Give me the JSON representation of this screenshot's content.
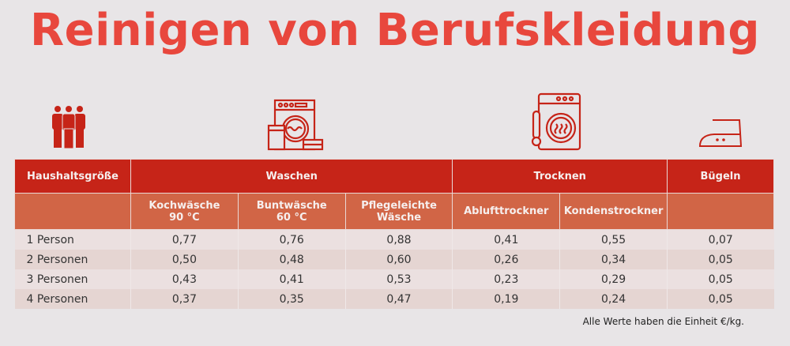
{
  "title": "Reinigen von Berufskleidung",
  "icons": [
    "people-icon",
    "washing-machine-icon",
    "dryer-icon",
    "iron-icon"
  ],
  "colors": {
    "accent": "#e8473d",
    "header": "#c62418",
    "subheader": "#d16546"
  },
  "table": {
    "groups": [
      "Haushaltsgröße",
      "Waschen",
      "Trocknen",
      "Bügeln"
    ],
    "subheaders": [
      "Kochwäsche",
      "90 °C",
      "Buntwäsche",
      "60 °C",
      "Pflegeleichte",
      "Wäsche",
      "Ablufttrockner",
      "Kondenstrockner"
    ],
    "rows": [
      [
        "1 Person",
        "0,77",
        "0,76",
        "0,88",
        "0,41",
        "0,55",
        "0,07"
      ],
      [
        "2 Personen",
        "0,50",
        "0,48",
        "0,60",
        "0,26",
        "0,34",
        "0,05"
      ],
      [
        "3 Personen",
        "0,43",
        "0,41",
        "0,53",
        "0,23",
        "0,29",
        "0,05"
      ],
      [
        "4 Personen",
        "0,37",
        "0,35",
        "0,47",
        "0,19",
        "0,24",
        "0,05"
      ]
    ]
  },
  "note": "Alle Werte haben die Einheit €/kg."
}
